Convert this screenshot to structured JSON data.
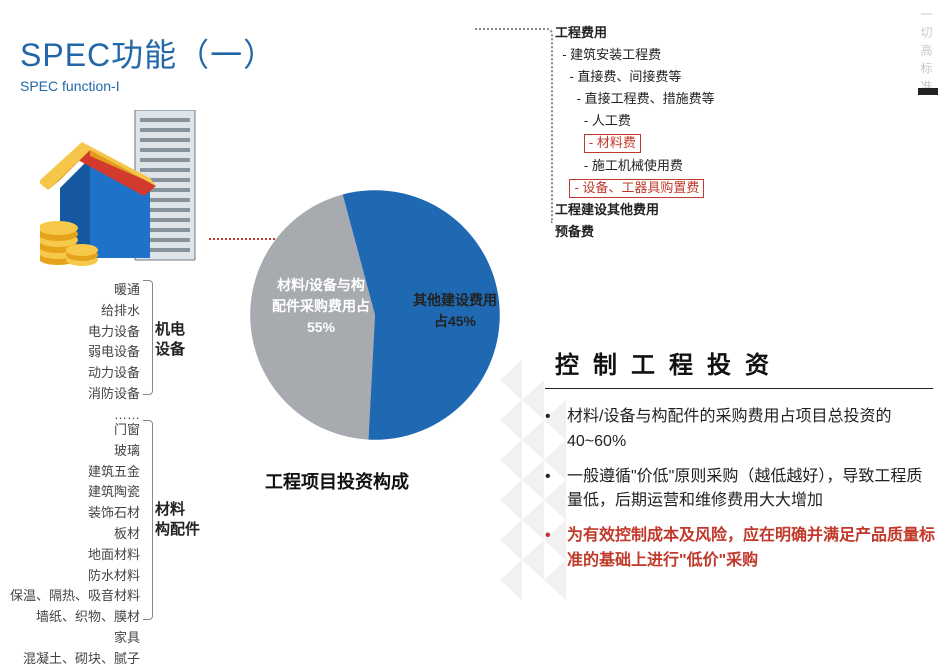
{
  "title": "SPEC功能（一）",
  "subtitle": "SPEC function-I",
  "corner_text": "一切高标准",
  "list1": {
    "items": [
      "暖通",
      "给排水",
      "电力设备",
      "弱电设备",
      "动力设备",
      "消防设备",
      "……"
    ],
    "label_line1": "机电",
    "label_line2": "设备"
  },
  "list2": {
    "items": [
      "门窗",
      "玻璃",
      "建筑五金",
      "建筑陶瓷",
      "装饰石材",
      "板材",
      "地面材料",
      "防水材料",
      "保温、隔热、吸音材料",
      "墙纸、织物、膜材",
      "家具",
      "混凝土、砌块、腻子"
    ],
    "label_line1": "材料",
    "label_line2": "构配件"
  },
  "pie": {
    "slice1": {
      "pct": 55,
      "color": "#1f69b3",
      "text": "材料/设备与构\n配件采购费用占\n55%"
    },
    "slice2": {
      "pct": 45,
      "color": "#a7abb0",
      "text": "其他建设费用\n占45%"
    },
    "caption": "工程项目投资构成",
    "rotation_deg": -15
  },
  "tree": [
    {
      "text": "工程费用",
      "indent": 0,
      "bold": true
    },
    {
      "text": "- 建筑安装工程费",
      "indent": 1
    },
    {
      "text": "- 直接费、间接费等",
      "indent": 2
    },
    {
      "text": "- 直接工程费、措施费等",
      "indent": 3
    },
    {
      "text": "- 人工费",
      "indent": 4
    },
    {
      "text": "- 材料费",
      "indent": 4,
      "redbox": true
    },
    {
      "text": "- 施工机械使用费",
      "indent": 4
    },
    {
      "text": "- 设备、工器具购置费",
      "indent": 2,
      "redbox": true
    },
    {
      "text": "工程建设其他费用",
      "indent": 0,
      "bold": true
    },
    {
      "text": "预备费",
      "indent": 0,
      "bold": true
    }
  ],
  "right_heading": "控制工程投资",
  "bullets": [
    {
      "text": "材料/设备与构配件的采购费用占项目总投资的40~60%",
      "red": false
    },
    {
      "text": "一般遵循\"价低\"原则采购（越低越好），导致工程质量低，后期运营和维修费用大大增加",
      "red": false
    },
    {
      "text": "为有效控制成本及风险，应在明确并满足产品质量标准的基础上进行\"低价\"采购",
      "red": true
    }
  ]
}
